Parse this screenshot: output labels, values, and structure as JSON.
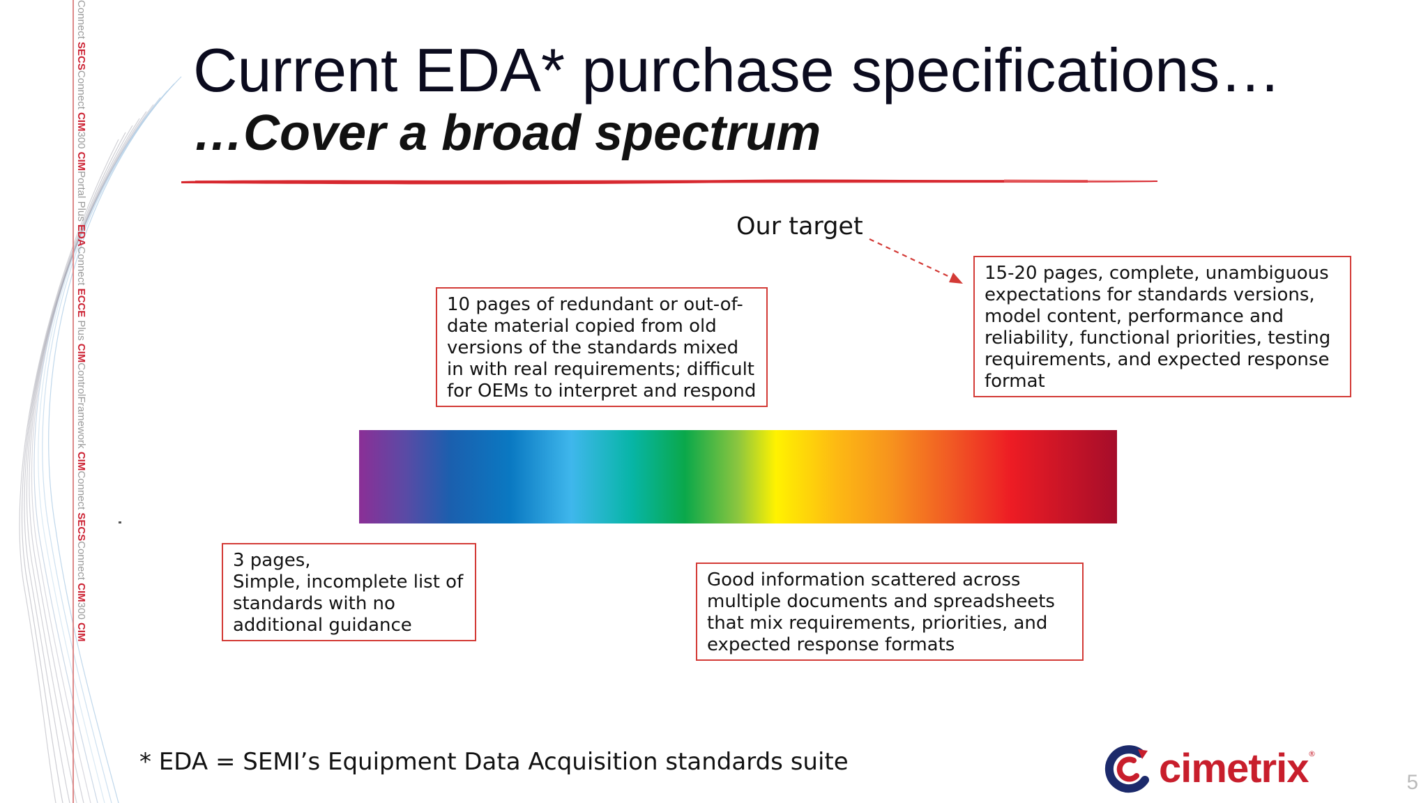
{
  "sidebar": {
    "segments": [
      {
        "brand": "",
        "rest": "Connect  "
      },
      {
        "brand": "SECS",
        "rest": "Connect  "
      },
      {
        "brand": "CIM",
        "rest": "300  "
      },
      {
        "brand": "CIM",
        "rest": "Portal  Plus  "
      },
      {
        "brand": "EDA",
        "rest": "Connect  "
      },
      {
        "brand": "ECCE",
        "rest": "  Plus  "
      },
      {
        "brand": "CIM",
        "rest": "ControlFramework  "
      },
      {
        "brand": "CIM",
        "rest": "Connect  "
      },
      {
        "brand": "SECS",
        "rest": "Connect  "
      },
      {
        "brand": "CIM",
        "rest": "300  "
      },
      {
        "brand": "CIM",
        "rest": ""
      }
    ]
  },
  "slide": {
    "title": "Current EDA* purchase specifications…",
    "subtitle": "…Cover a broad spectrum",
    "target_label": "Our target",
    "callouts": {
      "top_mid": "10 pages of redundant or out-of-\ndate material copied from old\nversions of the standards mixed\nin with real requirements; difficult\nfor OEMs to interpret and respond",
      "top_right": "15-20 pages, complete, unambiguous\nexpectations for standards versions,\nmodel content, performance and\nreliability, functional priorities, testing\nrequirements, and expected response\nformat",
      "bottom_left": "3 pages,\nSimple, incomplete list of\nstandards with no\nadditional guidance",
      "bottom_mid": "Good information scattered across\nmultiple documents and spreadsheets\nthat mix requirements, priorities, and\nexpected response formats"
    },
    "footnote": "* EDA = SEMI’s Equipment Data Acquisition standards suite",
    "logo_text": "cimetrix",
    "logo_reg": "®",
    "slide_number": "5"
  },
  "colors": {
    "accent_red": "#d33a36",
    "title_navy": "#0b0b1e",
    "logo_red": "#c81e2c",
    "logo_navy": "#1c2a6b"
  },
  "icons": {
    "logo_mark": "cimetrix-c-swirl-icon",
    "arrow": "dashed-arrow-icon"
  }
}
